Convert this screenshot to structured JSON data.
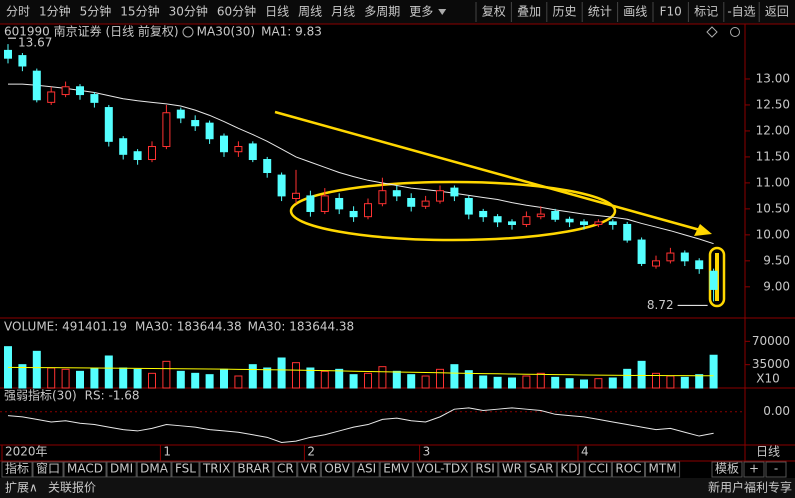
{
  "toolbar": {
    "periods": [
      "分时",
      "1分钟",
      "5分钟",
      "15分钟",
      "30分钟",
      "60分钟",
      "日线",
      "周线",
      "月线",
      "多周期",
      "更多"
    ],
    "actions": [
      "复权",
      "叠加",
      "历史",
      "统计",
      "画线",
      "F10",
      "标记",
      "-自选",
      "返回"
    ]
  },
  "chart_data": [
    {
      "type": "candlestick",
      "title": "601990 南京证券 (日线 前复权)",
      "annotations": [
        "MA1: 9.83"
      ],
      "categories": [
        "2020年",
        null,
        null,
        null,
        null,
        null,
        null,
        null,
        null,
        null,
        null,
        "1",
        null,
        null,
        null,
        null,
        null,
        null,
        null,
        null,
        null,
        "2",
        null,
        null,
        null,
        null,
        null,
        null,
        null,
        "3",
        null,
        null,
        null,
        null,
        null,
        null,
        null,
        null,
        null,
        null,
        "4",
        null,
        null,
        null,
        null,
        null,
        null,
        null,
        null,
        null
      ],
      "open": [
        13.55,
        13.45,
        13.15,
        12.55,
        12.7,
        12.85,
        12.7,
        12.45,
        11.85,
        11.6,
        11.45,
        11.7,
        12.4,
        12.2,
        12.15,
        11.9,
        11.6,
        11.75,
        11.45,
        11.15,
        10.7,
        10.75,
        10.45,
        10.7,
        10.45,
        10.35,
        10.6,
        10.85,
        10.7,
        10.55,
        10.65,
        10.9,
        10.7,
        10.45,
        10.35,
        10.25,
        10.2,
        10.35,
        10.45,
        10.3,
        10.25,
        10.2,
        10.25,
        10.2,
        9.9,
        9.4,
        9.5,
        9.65,
        9.5,
        9.3
      ],
      "high": [
        13.67,
        13.5,
        13.2,
        12.85,
        12.95,
        12.9,
        12.75,
        12.5,
        11.9,
        11.65,
        11.8,
        12.5,
        12.45,
        12.3,
        12.2,
        11.95,
        11.8,
        11.8,
        11.5,
        11.2,
        11.25,
        10.85,
        10.9,
        10.8,
        10.55,
        10.7,
        11.1,
        10.95,
        10.8,
        10.75,
        10.95,
        10.95,
        10.75,
        10.5,
        10.4,
        10.3,
        10.45,
        10.55,
        10.5,
        10.35,
        10.3,
        10.3,
        10.3,
        10.25,
        9.95,
        9.6,
        9.75,
        9.7,
        9.55,
        9.35
      ],
      "low": [
        13.3,
        13.15,
        12.55,
        12.5,
        12.65,
        12.6,
        12.45,
        11.7,
        11.45,
        11.35,
        11.4,
        11.65,
        12.15,
        12.0,
        11.75,
        11.5,
        11.5,
        11.4,
        11.1,
        10.65,
        10.6,
        10.35,
        10.4,
        10.4,
        10.25,
        10.3,
        10.55,
        10.65,
        10.45,
        10.5,
        10.6,
        10.65,
        10.3,
        10.25,
        10.15,
        10.1,
        10.15,
        10.3,
        10.25,
        10.15,
        10.1,
        10.15,
        10.1,
        9.85,
        9.4,
        9.35,
        9.45,
        9.4,
        9.25,
        8.72
      ],
      "close": [
        13.4,
        13.25,
        12.6,
        12.75,
        12.85,
        12.7,
        12.55,
        11.8,
        11.55,
        11.45,
        11.7,
        12.35,
        12.25,
        12.1,
        11.85,
        11.6,
        11.7,
        11.45,
        11.2,
        10.75,
        10.8,
        10.45,
        10.75,
        10.5,
        10.35,
        10.6,
        10.85,
        10.75,
        10.55,
        10.65,
        10.85,
        10.75,
        10.4,
        10.35,
        10.25,
        10.2,
        10.35,
        10.4,
        10.3,
        10.25,
        10.2,
        10.25,
        10.2,
        9.9,
        9.45,
        9.5,
        9.65,
        9.5,
        9.35,
        8.95
      ],
      "up_color": "#ff3232",
      "down_color": "#54ffff",
      "series": [
        {
          "name": "MA30(30)",
          "color": "#e8e8e8",
          "values": [
            12.9,
            12.9,
            12.88,
            12.85,
            12.82,
            12.78,
            12.74,
            12.68,
            12.62,
            12.58,
            12.55,
            12.52,
            12.48,
            12.4,
            12.3,
            12.18,
            12.05,
            11.93,
            11.8,
            11.65,
            11.5,
            11.4,
            11.3,
            11.2,
            11.12,
            11.05,
            11.0,
            10.95,
            10.9,
            10.87,
            10.84,
            10.8,
            10.76,
            10.72,
            10.68,
            10.62,
            10.57,
            10.53,
            10.48,
            10.44,
            10.4,
            10.37,
            10.34,
            10.3,
            10.22,
            10.15,
            10.08,
            10.0,
            9.92,
            9.83
          ]
        }
      ],
      "ylim": [
        8.4,
        13.75
      ],
      "yticks": [
        {
          "value": 9,
          "label": "9.00"
        },
        {
          "value": 9.5,
          "label": "9.50"
        },
        {
          "value": 10,
          "label": "10.00"
        },
        {
          "value": 10.5,
          "label": "10.50"
        },
        {
          "value": 11,
          "label": "11.00"
        },
        {
          "value": 11.5,
          "label": "11.50"
        },
        {
          "value": 12,
          "label": "12.00"
        },
        {
          "value": 12.5,
          "label": "12.50"
        },
        {
          "value": 13,
          "label": "13.00"
        }
      ]
    },
    {
      "type": "bar",
      "title": "VOLUME: 491401.19",
      "annotations": [
        "MA30: 183644.38"
      ],
      "unit_label": "X10",
      "values": [
        62000,
        35000,
        55000,
        30000,
        28000,
        25000,
        30000,
        48000,
        30000,
        28000,
        22000,
        40000,
        25000,
        22000,
        20000,
        28000,
        18000,
        35000,
        30000,
        45000,
        38000,
        30000,
        25000,
        28000,
        20000,
        22000,
        32000,
        25000,
        20000,
        18000,
        28000,
        35000,
        26000,
        18000,
        16000,
        15000,
        18000,
        22000,
        16000,
        14000,
        12000,
        14000,
        15000,
        28000,
        40000,
        22000,
        18000,
        16000,
        20000,
        49140
      ],
      "series": [
        {
          "name": "MA30: 183644.38",
          "color": "#ffff00",
          "values": [
            31000,
            30800,
            30600,
            30500,
            30300,
            30200,
            30000,
            29800,
            29600,
            29500,
            29300,
            29100,
            28900,
            28700,
            28500,
            28300,
            28000,
            27700,
            27400,
            27100,
            26800,
            26400,
            26000,
            25600,
            25200,
            24800,
            24400,
            24000,
            23600,
            23200,
            22800,
            22400,
            22000,
            21600,
            21300,
            21000,
            20700,
            20400,
            20100,
            19800,
            19500,
            19300,
            19100,
            18900,
            18800,
            18700,
            18600,
            18500,
            18420,
            18364
          ]
        }
      ],
      "ylim": [
        0,
        78000
      ],
      "yticks": [
        35000,
        70000
      ]
    },
    {
      "type": "line",
      "title": "强弱指标(30)",
      "annotations": [
        "RS: -1.68"
      ],
      "series": [
        {
          "color": "#e8e8e8",
          "values": [
            -0.3,
            -0.4,
            -0.6,
            -0.8,
            -0.7,
            -0.9,
            -1.0,
            -1.2,
            -1.4,
            -1.5,
            -1.3,
            -1.0,
            -1.1,
            -1.2,
            -1.4,
            -1.5,
            -1.6,
            -1.8,
            -2.0,
            -2.4,
            -2.3,
            -2.0,
            -1.8,
            -1.5,
            -1.2,
            -1.0,
            -0.6,
            -0.5,
            -0.7,
            -0.8,
            -0.4,
            0.2,
            0.3,
            0.1,
            0.2,
            0.3,
            0.2,
            0.1,
            -0.2,
            -0.3,
            -0.4,
            -0.6,
            -0.8,
            -1.0,
            -1.2,
            -1.4,
            -1.3,
            -1.6,
            -1.9,
            -1.68
          ]
        }
      ],
      "ylim": [
        -2.6,
        1.7
      ],
      "yticks": [
        {
          "value": 0,
          "label": "0.00"
        }
      ]
    }
  ],
  "period_label": "日线",
  "indicator_tabs": [
    "指标",
    "窗口",
    "MACD",
    "DMI",
    "DMA",
    "FSL",
    "TRIX",
    "BRAR",
    "CR",
    "VR",
    "OBV",
    "ASI",
    "EMV",
    "VOL-TDX",
    "RSI",
    "WR",
    "SAR",
    "KDJ",
    "CCI",
    "ROC",
    "MTM"
  ],
  "template_buttons": [
    "模板",
    "+",
    "-"
  ],
  "status_bar": {
    "left": [
      "扩展∧",
      "关联报价"
    ],
    "right": "新用户福利专享"
  }
}
